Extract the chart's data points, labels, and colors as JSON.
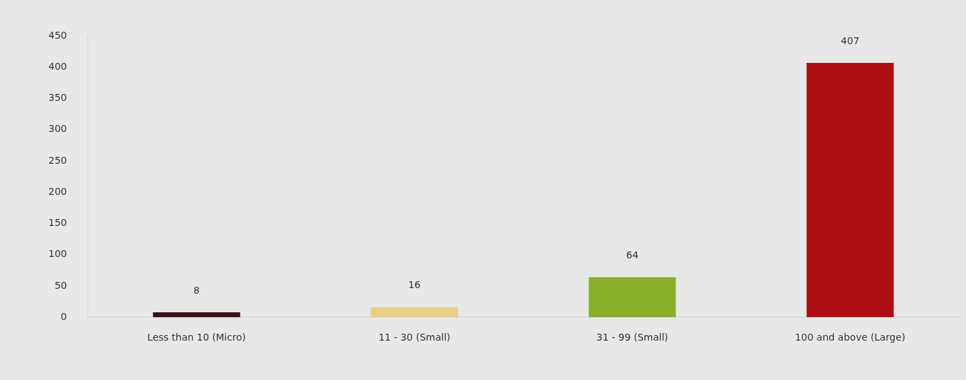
{
  "chart_data": {
    "type": "bar",
    "categories": [
      "Less than 10 (Micro)",
      "11 - 30 (Small)",
      "31 - 99 (Small)",
      "100 and above (Large)"
    ],
    "values": [
      8,
      16,
      64,
      407
    ],
    "colors": [
      "#3a1218",
      "#e8d08a",
      "#8aae2c",
      "#ad1014"
    ],
    "ylim": [
      0,
      450
    ],
    "yticks": [
      0,
      50,
      100,
      150,
      200,
      250,
      300,
      350,
      400,
      450
    ],
    "data_labels": true
  }
}
